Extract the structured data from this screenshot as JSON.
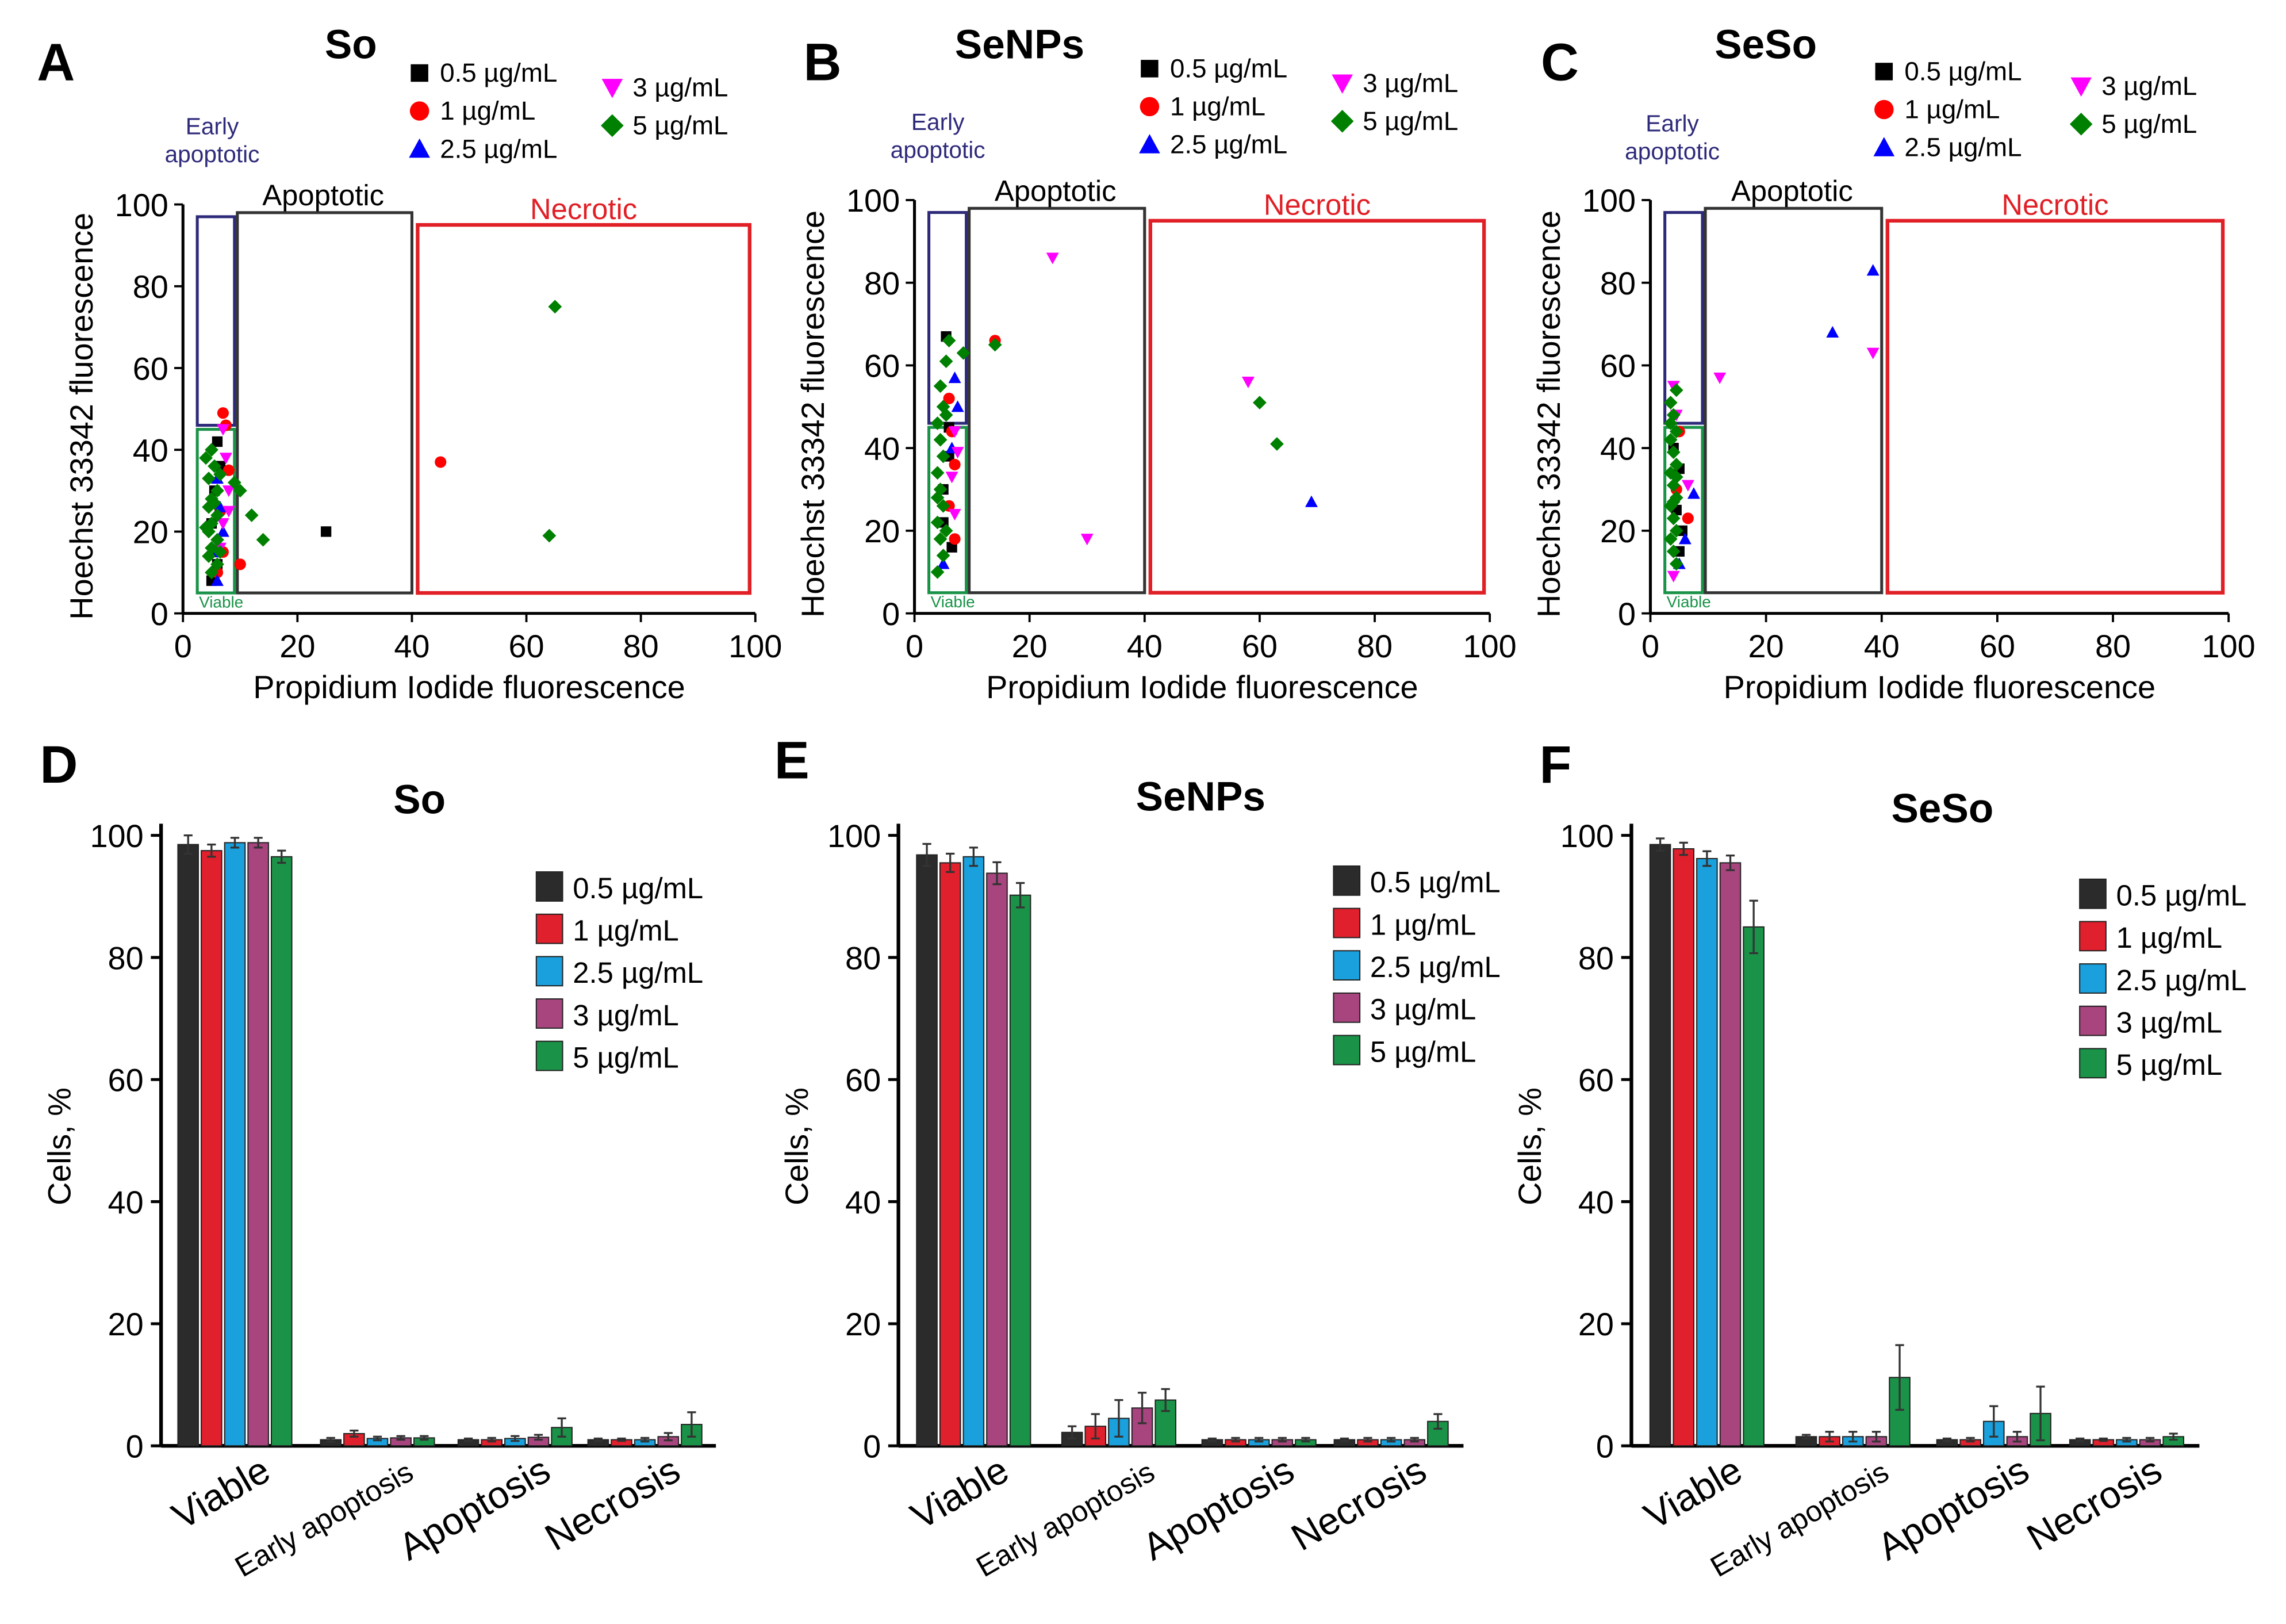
{
  "colors": {
    "c05": "#2b2b2b",
    "c1": "#e0202c",
    "c25": "#1aa0dc",
    "c3": "#a8457f",
    "c5": "#1a9348",
    "sq": "#000000",
    "ci": "#ff0000",
    "tr": "#0000ff",
    "tv": "#ff00ff",
    "dm": "#008000",
    "early": "#2e2a7a",
    "apop": "#333333",
    "necro": "#e01f26",
    "viable": "#1a9348"
  },
  "chart_data": [
    {
      "panel": "A",
      "type": "scatter",
      "title": "So",
      "xlabel": "Propidium Iodide  fluorescence",
      "ylabel": "Hoechst 33342  fluorescence",
      "xlim": [
        0,
        100
      ],
      "ylim": [
        0,
        100
      ],
      "xticks": [
        "0",
        "20",
        "40",
        "60",
        "80",
        "100"
      ],
      "yticks": [
        "0",
        "20",
        "40",
        "60",
        "80",
        "100"
      ],
      "legend": [
        "0.5 µg/mL",
        "1 µg/mL",
        "2.5 µg/mL",
        "3 µg/mL",
        "5 µg/mL"
      ],
      "gates": {
        "early": "Early\napoptotic",
        "apoptotic": "Apoptotic",
        "necrotic": "Necrotic",
        "viable": "Viable"
      },
      "series": [
        {
          "name": "0.5 µg/mL",
          "marker": "square",
          "points": [
            [
              25,
              20
            ],
            [
              6,
              42
            ],
            [
              5.5,
              30
            ],
            [
              5,
              22
            ],
            [
              6,
              12
            ],
            [
              5,
              8
            ],
            [
              6.5,
              36
            ]
          ]
        },
        {
          "name": "1 µg/mL",
          "marker": "circle",
          "points": [
            [
              45,
              37
            ],
            [
              7,
              49
            ],
            [
              7.5,
              46
            ],
            [
              10,
              12
            ],
            [
              6.5,
              25
            ],
            [
              7,
              15
            ],
            [
              8,
              35
            ],
            [
              6,
              10
            ]
          ]
        },
        {
          "name": "2.5 µg/mL",
          "marker": "triangle-up",
          "points": [
            [
              6,
              8
            ],
            [
              5.5,
              15
            ],
            [
              6.5,
              26
            ],
            [
              6,
              33
            ],
            [
              7,
              20
            ]
          ]
        },
        {
          "name": "3 µg/mL",
          "marker": "triangle-down",
          "points": [
            [
              7,
              45
            ],
            [
              7.5,
              38
            ],
            [
              8,
              30
            ],
            [
              7,
              22
            ],
            [
              6.5,
              16
            ],
            [
              8,
              25
            ]
          ]
        },
        {
          "name": "5 µg/mL",
          "marker": "diamond",
          "points": [
            [
              65,
              75
            ],
            [
              64,
              19
            ],
            [
              10,
              30
            ],
            [
              14,
              18
            ],
            [
              12,
              24
            ],
            [
              9,
              32
            ],
            [
              5,
              40
            ],
            [
              5.5,
              36
            ],
            [
              4.5,
              33
            ],
            [
              6,
              30
            ],
            [
              5,
              28
            ],
            [
              4.5,
              26
            ],
            [
              6,
              24
            ],
            [
              5,
              22
            ],
            [
              4.5,
              20
            ],
            [
              6,
              18
            ],
            [
              5,
              16
            ],
            [
              4.5,
              14
            ],
            [
              6,
              12
            ],
            [
              5,
              10
            ],
            [
              4,
              38
            ],
            [
              6.5,
              34
            ],
            [
              5.5,
              27
            ],
            [
              4,
              21
            ],
            [
              6.5,
              15
            ]
          ]
        }
      ]
    },
    {
      "panel": "B",
      "type": "scatter",
      "title": "SeNPs",
      "xlabel": "Propidium Iodide  fluorescence",
      "ylabel": "Hoechst 33342  fluorescence",
      "xlim": [
        0,
        100
      ],
      "ylim": [
        0,
        100
      ],
      "xticks": [
        "0",
        "20",
        "40",
        "60",
        "80",
        "100"
      ],
      "yticks": [
        "0",
        "20",
        "40",
        "60",
        "80",
        "100"
      ],
      "legend": [
        "0.5 µg/mL",
        "1 µg/mL",
        "2.5 µg/mL",
        "3 µg/mL",
        "5 µg/mL"
      ],
      "gates": {
        "early": "Early\napoptotic",
        "apoptotic": "Apoptotic",
        "necrotic": "Necrotic",
        "viable": "Viable"
      },
      "series": [
        {
          "name": "0.5 µg/mL",
          "marker": "square",
          "points": [
            [
              5.5,
              67
            ],
            [
              6.5,
              16
            ],
            [
              5,
              30
            ],
            [
              6,
              45
            ],
            [
              5,
              22
            ],
            [
              6,
              38
            ]
          ]
        },
        {
          "name": "1 µg/mL",
          "marker": "circle",
          "points": [
            [
              14,
              66
            ],
            [
              6,
              52
            ],
            [
              6.5,
              44
            ],
            [
              7,
              36
            ],
            [
              6,
              26
            ],
            [
              7,
              18
            ]
          ]
        },
        {
          "name": "2.5 µg/mL",
          "marker": "triangle-up",
          "points": [
            [
              69,
              27
            ],
            [
              7,
              57
            ],
            [
              7.5,
              50
            ],
            [
              5,
              12
            ],
            [
              6.5,
              40
            ]
          ]
        },
        {
          "name": "3 µg/mL",
          "marker": "triangle-down",
          "points": [
            [
              24,
              86
            ],
            [
              30,
              18
            ],
            [
              58,
              56
            ],
            [
              7,
              44
            ],
            [
              7.5,
              39
            ],
            [
              6.5,
              33
            ],
            [
              7,
              24
            ]
          ]
        },
        {
          "name": "5 µg/mL",
          "marker": "diamond",
          "points": [
            [
              60,
              51
            ],
            [
              63,
              41
            ],
            [
              14,
              65
            ],
            [
              8.5,
              63
            ],
            [
              6,
              66
            ],
            [
              5.5,
              61
            ],
            [
              4.5,
              55
            ],
            [
              5,
              50
            ],
            [
              4,
              46
            ],
            [
              4.5,
              42
            ],
            [
              5,
              38
            ],
            [
              4,
              34
            ],
            [
              4.5,
              30
            ],
            [
              5,
              26
            ],
            [
              4,
              22
            ],
            [
              4.5,
              18
            ],
            [
              5,
              14
            ],
            [
              4,
              10
            ],
            [
              5.5,
              48
            ],
            [
              4,
              28
            ],
            [
              5.5,
              20
            ]
          ]
        }
      ]
    },
    {
      "panel": "C",
      "type": "scatter",
      "title": "SeSo",
      "xlabel": "Propidium Iodide  fluorescence",
      "ylabel": "Hoechst 33342  fluorescence",
      "xlim": [
        0,
        100
      ],
      "ylim": [
        0,
        100
      ],
      "xticks": [
        "0",
        "20",
        "40",
        "60",
        "80",
        "100"
      ],
      "yticks": [
        "0",
        "20",
        "40",
        "60",
        "80",
        "100"
      ],
      "legend": [
        "0.5 µg/mL",
        "1 µg/mL",
        "2.5 µg/mL",
        "3 µg/mL",
        "5 µg/mL"
      ],
      "gates": {
        "early": "Early\napoptotic",
        "apoptotic": "Apoptotic",
        "necrotic": "Necrotic",
        "viable": "Viable"
      },
      "series": [
        {
          "name": "0.5 µg/mL",
          "marker": "square",
          "points": [
            [
              5,
              15
            ],
            [
              4.5,
              25
            ],
            [
              5,
              35
            ],
            [
              4,
              40
            ],
            [
              5.5,
              20
            ]
          ]
        },
        {
          "name": "1 µg/mL",
          "marker": "circle",
          "points": [
            [
              6.5,
              23
            ],
            [
              5,
              44
            ],
            [
              4.5,
              30
            ]
          ]
        },
        {
          "name": "2.5 µg/mL",
          "marker": "triangle-up",
          "points": [
            [
              38.5,
              83
            ],
            [
              31.5,
              68
            ],
            [
              7.5,
              29
            ],
            [
              5,
              12
            ],
            [
              6,
              18
            ]
          ]
        },
        {
          "name": "3 µg/mL",
          "marker": "triangle-down",
          "points": [
            [
              38.5,
              63
            ],
            [
              12,
              57
            ],
            [
              4,
              55
            ],
            [
              4.5,
              48
            ],
            [
              6.5,
              31
            ],
            [
              4,
              9
            ]
          ]
        },
        {
          "name": "5 µg/mL",
          "marker": "diamond",
          "points": [
            [
              4.5,
              54
            ],
            [
              3.5,
              51
            ],
            [
              4,
              48
            ],
            [
              4.5,
              44
            ],
            [
              3.5,
              42
            ],
            [
              4,
              39
            ],
            [
              4.5,
              36
            ],
            [
              3.5,
              34
            ],
            [
              4,
              31
            ],
            [
              4.5,
              28
            ],
            [
              3.5,
              26
            ],
            [
              4,
              23
            ],
            [
              4.5,
              20
            ],
            [
              3.5,
              18
            ],
            [
              4,
              15
            ],
            [
              4.5,
              12
            ],
            [
              3.5,
              46
            ],
            [
              4,
              27
            ],
            [
              4.5,
              33
            ]
          ]
        }
      ]
    },
    {
      "panel": "D",
      "type": "bar",
      "title": "So",
      "xlabel": "",
      "ylabel": "Cells, %",
      "ylim": [
        0,
        100
      ],
      "yticks": [
        "0",
        "20",
        "40",
        "60",
        "80",
        "100"
      ],
      "categories": [
        "Viable",
        "Early apoptosis",
        "Apoptosis",
        "Necrosis"
      ],
      "series": [
        {
          "name": "0.5 µg/mL",
          "values": [
            98.5,
            1.0,
            1.0,
            1.0
          ],
          "errors": [
            1.5,
            0.3,
            0.2,
            0.2
          ]
        },
        {
          "name": "1 µg/mL",
          "values": [
            97.5,
            2.0,
            1.0,
            1.0
          ],
          "errors": [
            1.0,
            0.5,
            0.3,
            0.2
          ]
        },
        {
          "name": "2.5 µg/mL",
          "values": [
            98.8,
            1.2,
            1.2,
            1.0
          ],
          "errors": [
            0.8,
            0.3,
            0.4,
            0.3
          ]
        },
        {
          "name": "3 µg/mL",
          "values": [
            98.8,
            1.3,
            1.4,
            1.5
          ],
          "errors": [
            0.8,
            0.3,
            0.4,
            0.6
          ]
        },
        {
          "name": "5 µg/mL",
          "values": [
            96.5,
            1.3,
            3.0,
            3.5
          ],
          "errors": [
            1.0,
            0.3,
            1.5,
            2.0
          ]
        }
      ]
    },
    {
      "panel": "E",
      "type": "bar",
      "title": "SeNPs",
      "xlabel": "",
      "ylabel": "Cells, %",
      "ylim": [
        0,
        100
      ],
      "yticks": [
        "0",
        "20",
        "40",
        "60",
        "80",
        "100"
      ],
      "categories": [
        "Viable",
        "Early apoptosis",
        "Apoptosis",
        "Necrosis"
      ],
      "series": [
        {
          "name": "0.5 µg/mL",
          "values": [
            96.8,
            2.2,
            1.0,
            1.0
          ],
          "errors": [
            1.8,
            1.0,
            0.2,
            0.2
          ]
        },
        {
          "name": "1 µg/mL",
          "values": [
            95.5,
            3.2,
            1.0,
            1.0
          ],
          "errors": [
            1.5,
            2.0,
            0.3,
            0.3
          ]
        },
        {
          "name": "2.5 µg/mL",
          "values": [
            96.5,
            4.5,
            1.0,
            1.0
          ],
          "errors": [
            1.5,
            3.0,
            0.3,
            0.3
          ]
        },
        {
          "name": "3 µg/mL",
          "values": [
            93.8,
            6.2,
            1.0,
            1.0
          ],
          "errors": [
            1.8,
            2.5,
            0.3,
            0.3
          ]
        },
        {
          "name": "5 µg/mL",
          "values": [
            90.2,
            7.5,
            1.0,
            4.0
          ],
          "errors": [
            2.0,
            1.8,
            0.3,
            1.2
          ]
        }
      ]
    },
    {
      "panel": "F",
      "type": "bar",
      "title": "SeSo",
      "xlabel": "",
      "ylabel": "Cells, %",
      "ylim": [
        0,
        100
      ],
      "yticks": [
        "0",
        "20",
        "40",
        "60",
        "80",
        "100"
      ],
      "categories": [
        "Viable",
        "Early apoptosis",
        "Apoptosis",
        "Necrosis"
      ],
      "series": [
        {
          "name": "0.5 µg/mL",
          "values": [
            98.5,
            1.5,
            1.0,
            1.0
          ],
          "errors": [
            1.0,
            0.3,
            0.2,
            0.2
          ]
        },
        {
          "name": "1 µg/mL",
          "values": [
            97.8,
            1.5,
            1.0,
            1.0
          ],
          "errors": [
            1.0,
            0.8,
            0.3,
            0.2
          ]
        },
        {
          "name": "2.5 µg/mL",
          "values": [
            96.2,
            1.5,
            4.0,
            1.0
          ],
          "errors": [
            1.2,
            0.8,
            2.5,
            0.3
          ]
        },
        {
          "name": "3 µg/mL",
          "values": [
            95.5,
            1.5,
            1.5,
            1.0
          ],
          "errors": [
            1.2,
            0.8,
            0.8,
            0.3
          ]
        },
        {
          "name": "5 µg/mL",
          "values": [
            85.0,
            11.2,
            5.3,
            1.5
          ],
          "errors": [
            4.3,
            5.3,
            4.4,
            0.5
          ]
        }
      ]
    }
  ]
}
